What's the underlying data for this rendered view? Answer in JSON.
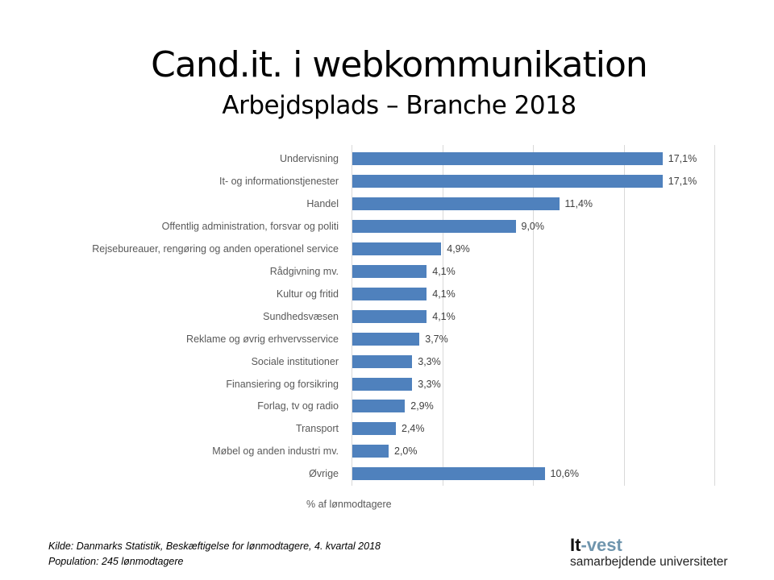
{
  "title": "Cand.it. i webkommunikation",
  "subtitle": "Arbejdsplads – Branche 2018",
  "xlabel": "% af lønmodtagere",
  "source_lines": [
    "Kilde: Danmarks Statistik, Beskæftigelse for lønmodtagere, 4. kvartal 2018",
    "Population: 245 lønmodtagere"
  ],
  "logo": {
    "it": "It",
    "vest": "-vest",
    "sub": "samarbejdende universiteter"
  },
  "colors": {
    "bar": "#4f81bd",
    "grid": "#d9d9d9",
    "logo_accent": "#6f95ad"
  },
  "chart_data": {
    "type": "bar",
    "orientation": "horizontal",
    "title": "Cand.it. i webkommunikation — Arbejdsplads – Branche 2018",
    "xlabel": "% af lønmodtagere",
    "ylabel": "",
    "xlim": [
      0,
      20
    ],
    "grid": true,
    "gridlines_at": [
      0,
      5,
      10,
      15,
      20
    ],
    "legend": null,
    "categories": [
      "Undervisning",
      "It- og informationstjenester",
      "Handel",
      "Offentlig administration, forsvar og politi",
      "Rejsebureauer, rengøring og anden operationel service",
      "Rådgivning mv.",
      "Kultur og fritid",
      "Sundhedsvæsen",
      "Reklame og øvrig erhvervsservice",
      "Sociale institutioner",
      "Finansiering og forsikring",
      "Forlag, tv og radio",
      "Transport",
      "Møbel og anden industri mv.",
      "Øvrige"
    ],
    "values": [
      17.1,
      17.1,
      11.4,
      9.0,
      4.9,
      4.1,
      4.1,
      4.1,
      3.7,
      3.3,
      3.3,
      2.9,
      2.4,
      2.0,
      10.6
    ],
    "labels": [
      "17,1%",
      "17,1%",
      "11,4%",
      "9,0%",
      "4,9%",
      "4,1%",
      "4,1%",
      "4,1%",
      "3,7%",
      "3,3%",
      "3,3%",
      "2,9%",
      "2,4%",
      "2,0%",
      "10,6%"
    ]
  }
}
